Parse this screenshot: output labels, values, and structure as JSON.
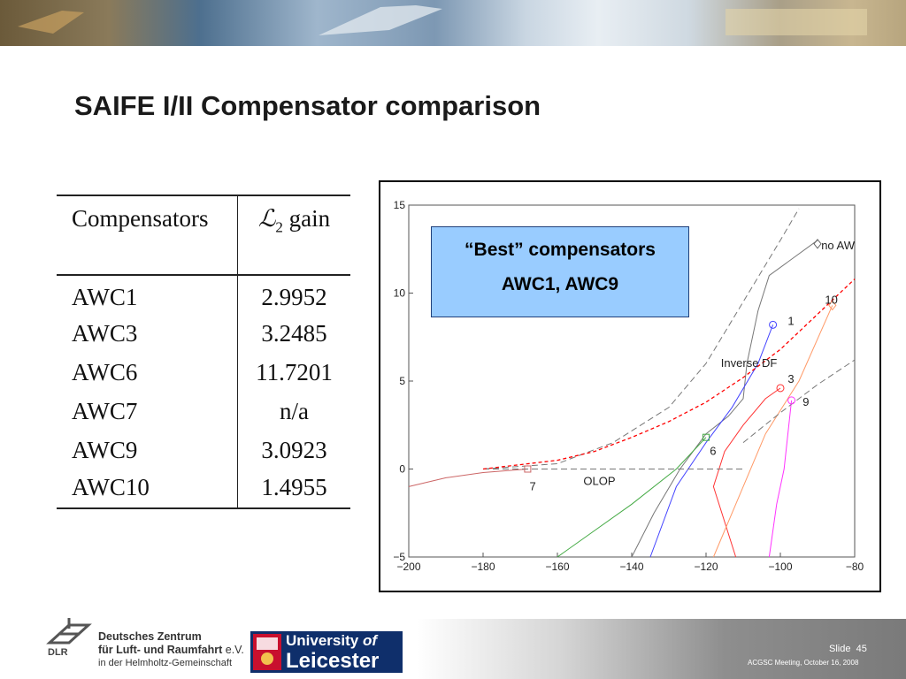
{
  "title": "SAIFE I/II Compensator comparison",
  "table": {
    "headers": [
      "Compensators",
      "gain"
    ],
    "header_gain_symbol": "L2",
    "rows": [
      {
        "name": "AWC1",
        "gain": "2.9952"
      },
      {
        "name": "AWC3",
        "gain": "3.2485"
      },
      {
        "name": "AWC6",
        "gain": "11.7201"
      },
      {
        "name": "AWC7",
        "gain": "n/a"
      },
      {
        "name": "AWC9",
        "gain": "3.0923"
      },
      {
        "name": "AWC10",
        "gain": "1.4955"
      }
    ]
  },
  "callout": {
    "line1": "“Best” compensators",
    "line2": "AWC1, AWC9",
    "color": "#99ccff"
  },
  "footer": {
    "dlr_line1": "Deutsches Zentrum",
    "dlr_line2": "für Luft- und Raumfahrt",
    "dlr_line2_suffix": "e.V.",
    "dlr_line3": "in der Helmholtz-Gemeinschaft",
    "dlr_abbrev": "DLR",
    "leicester_line1": "University",
    "leicester_of": "of",
    "leicester_line2": "Leicester",
    "slide_label": "Slide",
    "slide_number": "45",
    "meeting": "ACGSC Meeting, October 16, 2008"
  },
  "chart_data": {
    "type": "line",
    "xlim": [
      -200,
      -80
    ],
    "ylim": [
      -5,
      15
    ],
    "x_ticks": [
      -200,
      -180,
      -160,
      -140,
      -120,
      -100,
      -80
    ],
    "y_ticks": [
      -5,
      0,
      5,
      10,
      15
    ],
    "annotations": [
      {
        "text": "no AW",
        "x": -89,
        "y": 12.5
      },
      {
        "text": "Inverse DF",
        "x": -116,
        "y": 5.8
      },
      {
        "text": "OLOP",
        "x": -153,
        "y": -0.9
      },
      {
        "text": "1",
        "x": -98,
        "y": 8.2
      },
      {
        "text": "3",
        "x": -98,
        "y": 4.9
      },
      {
        "text": "9",
        "x": -94,
        "y": 3.6
      },
      {
        "text": "6",
        "x": -119,
        "y": 0.8
      },
      {
        "text": "7",
        "x": -167.5,
        "y": -1.2
      },
      {
        "text": "10",
        "x": -88,
        "y": 9.4
      }
    ],
    "series": [
      {
        "name": "no AW",
        "style": "solid",
        "color": "#777777",
        "points": [
          [
            -140,
            -5
          ],
          [
            -134,
            -2.5
          ],
          [
            -127,
            0
          ],
          [
            -120,
            2
          ],
          [
            -114,
            3
          ],
          [
            -110,
            4
          ],
          [
            -109,
            6
          ],
          [
            -106,
            9
          ],
          [
            -103,
            11
          ],
          [
            -90,
            13
          ]
        ]
      },
      {
        "name": "1",
        "style": "solid",
        "color": "#4444ff",
        "points": [
          [
            -135,
            -5
          ],
          [
            -128,
            -1
          ],
          [
            -120,
            1.5
          ],
          [
            -113,
            3.5
          ],
          [
            -106,
            6
          ],
          [
            -102,
            8.2
          ]
        ]
      },
      {
        "name": "3",
        "style": "solid",
        "color": "#ff3333",
        "points": [
          [
            -112,
            -5
          ],
          [
            -118,
            -1
          ],
          [
            -115,
            1
          ],
          [
            -110,
            2.5
          ],
          [
            -104,
            4
          ],
          [
            -100,
            4.6
          ]
        ]
      },
      {
        "name": "9",
        "style": "solid",
        "color": "#ff33ff",
        "points": [
          [
            -103,
            -5
          ],
          [
            -101,
            -2
          ],
          [
            -99,
            0
          ],
          [
            -97,
            3.9
          ]
        ]
      },
      {
        "name": "6",
        "style": "solid",
        "color": "#44aa44",
        "points": [
          [
            -160,
            -5
          ],
          [
            -150,
            -3.5
          ],
          [
            -140,
            -2
          ],
          [
            -128,
            0
          ],
          [
            -120,
            1.8
          ]
        ]
      },
      {
        "name": "7",
        "style": "solid",
        "color": "#cc6666",
        "points": [
          [
            -200,
            -1
          ],
          [
            -190,
            -0.5
          ],
          [
            -180,
            -0.2
          ],
          [
            -168,
            0
          ]
        ]
      },
      {
        "name": "10",
        "style": "solid",
        "color": "#ff9966",
        "points": [
          [
            -118,
            -5
          ],
          [
            -112,
            -2
          ],
          [
            -104,
            2
          ],
          [
            -95,
            5
          ],
          [
            -86,
            9.3
          ]
        ]
      },
      {
        "name": "Inverse DF",
        "style": "dashed",
        "color": "#777777",
        "points": [
          [
            -180,
            0
          ],
          [
            -160,
            0.3
          ],
          [
            -145,
            1.5
          ],
          [
            -130,
            3.5
          ],
          [
            -120,
            6
          ],
          [
            -110,
            9.5
          ],
          [
            -100,
            13
          ],
          [
            -95,
            14.8
          ]
        ]
      },
      {
        "name": "Inverse DF lower",
        "style": "dashed",
        "color": "#777777",
        "points": [
          [
            -110,
            1.5
          ],
          [
            -100,
            3.2
          ],
          [
            -90,
            4.8
          ],
          [
            -80,
            6.2
          ]
        ]
      },
      {
        "name": "OLOP",
        "style": "dashed",
        "color": "#777777",
        "points": [
          [
            -180,
            0
          ],
          [
            -110,
            0
          ]
        ]
      },
      {
        "name": "best fit",
        "style": "dashed",
        "color": "#ff0000",
        "points": [
          [
            -180,
            0
          ],
          [
            -160,
            0.5
          ],
          [
            -150,
            1
          ],
          [
            -140,
            1.8
          ],
          [
            -130,
            2.7
          ],
          [
            -120,
            3.8
          ],
          [
            -110,
            5.2
          ],
          [
            -100,
            6.8
          ],
          [
            -90,
            8.8
          ],
          [
            -80,
            10.8
          ]
        ]
      }
    ],
    "markers": [
      {
        "series": "no AW",
        "shape": "diamond",
        "x": -90,
        "y": 12.8,
        "color": "#666666"
      },
      {
        "series": "1",
        "shape": "circle",
        "x": -102,
        "y": 8.2,
        "color": "#4444ff"
      },
      {
        "series": "3",
        "shape": "circle",
        "x": -100,
        "y": 4.6,
        "color": "#ff3333"
      },
      {
        "series": "9",
        "shape": "circle",
        "x": -97,
        "y": 3.9,
        "color": "#ff33ff"
      },
      {
        "series": "6",
        "shape": "square",
        "x": -120,
        "y": 1.8,
        "color": "#44aa44"
      },
      {
        "series": "7",
        "shape": "square",
        "x": -168,
        "y": 0,
        "color": "#cc6666"
      },
      {
        "series": "10",
        "shape": "diamond",
        "x": -86,
        "y": 9.3,
        "color": "#ff9966"
      }
    ]
  }
}
